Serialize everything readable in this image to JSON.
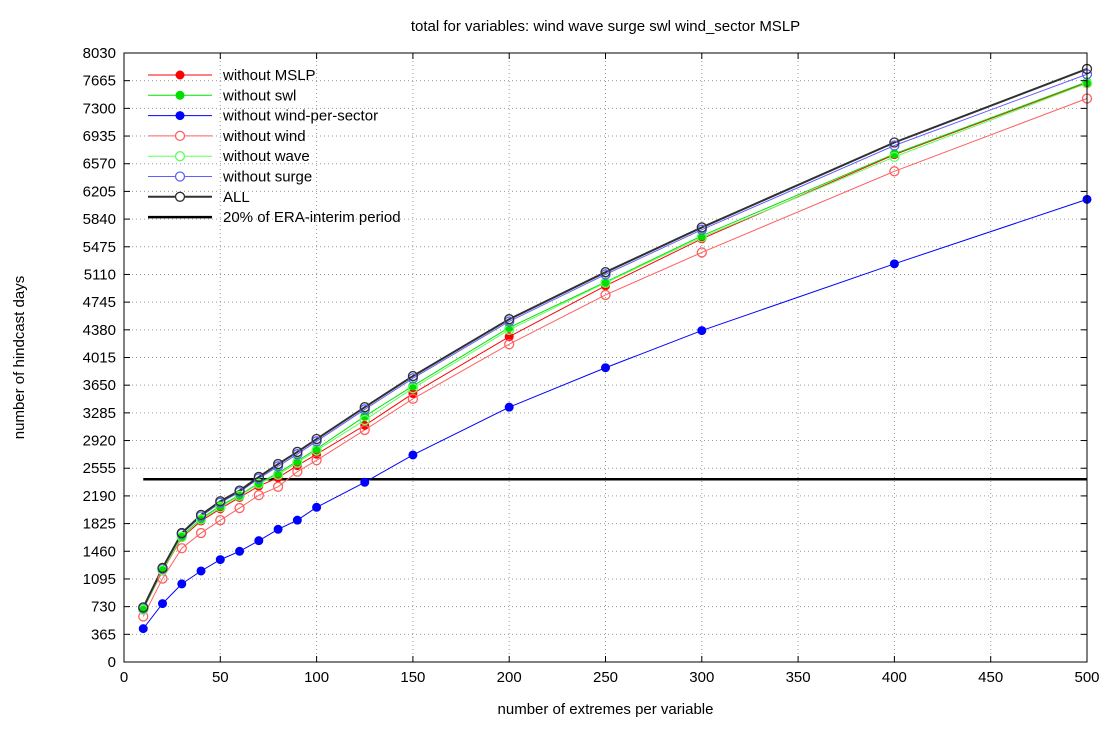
{
  "chart_data": {
    "type": "line",
    "title": "total for variables: wind wave surge swl wind_sector MSLP",
    "xlabel": "number of extremes per variable",
    "ylabel": "number of hindcast days",
    "xlim": [
      0,
      500
    ],
    "ylim": [
      0,
      8030
    ],
    "xticks": [
      0,
      50,
      100,
      150,
      200,
      250,
      300,
      350,
      400,
      450,
      500
    ],
    "yticks": [
      0,
      365,
      730,
      1095,
      1460,
      1825,
      2190,
      2555,
      2920,
      3285,
      3650,
      4015,
      4380,
      4745,
      5110,
      5475,
      5840,
      6205,
      6570,
      6935,
      7300,
      7665,
      8030
    ],
    "grid": true,
    "legend_position": "top-left",
    "x": [
      10,
      20,
      30,
      40,
      50,
      60,
      70,
      80,
      90,
      100,
      125,
      150,
      200,
      250,
      300,
      400,
      500
    ],
    "series": [
      {
        "name": "without MSLP",
        "color": "#ff0000",
        "marker": "filled",
        "line_width": 1,
        "values": [
          690,
          1200,
          1640,
          1860,
          2020,
          2170,
          2320,
          2430,
          2590,
          2740,
          3120,
          3540,
          4290,
          4960,
          5580,
          6690,
          7640
        ]
      },
      {
        "name": "without swl",
        "color": "#00e000",
        "marker": "filled",
        "line_width": 1,
        "values": [
          700,
          1210,
          1660,
          1890,
          2060,
          2200,
          2360,
          2490,
          2650,
          2810,
          3240,
          3640,
          4410,
          5010,
          5620,
          6700,
          7650
        ]
      },
      {
        "name": "without wind-per-sector",
        "color": "#0000ff",
        "marker": "filled",
        "line_width": 1,
        "values": [
          440,
          770,
          1030,
          1200,
          1350,
          1460,
          1600,
          1750,
          1870,
          2040,
          2370,
          2730,
          3360,
          3880,
          4370,
          5250,
          6100
        ]
      },
      {
        "name": "without wind",
        "color": "#ff6060",
        "marker": "open",
        "line_width": 1,
        "values": [
          600,
          1100,
          1500,
          1700,
          1870,
          2030,
          2200,
          2310,
          2510,
          2660,
          3060,
          3470,
          4190,
          4840,
          5400,
          6470,
          7430
        ]
      },
      {
        "name": "without wave",
        "color": "#60ff60",
        "marker": "open",
        "line_width": 1,
        "values": [
          690,
          1210,
          1650,
          1880,
          2040,
          2190,
          2350,
          2470,
          2630,
          2790,
          3190,
          3610,
          4380,
          5000,
          5600,
          6660,
          7630
        ]
      },
      {
        "name": "without surge",
        "color": "#6060ff",
        "marker": "open",
        "line_width": 1,
        "values": [
          710,
          1230,
          1690,
          1920,
          2100,
          2240,
          2420,
          2580,
          2740,
          2910,
          3330,
          3740,
          4490,
          5110,
          5700,
          6810,
          7750
        ]
      },
      {
        "name": "ALL",
        "color": "#303030",
        "marker": "open",
        "line_width": 2,
        "values": [
          720,
          1240,
          1700,
          1940,
          2120,
          2260,
          2440,
          2610,
          2770,
          2940,
          3360,
          3770,
          4520,
          5140,
          5730,
          6850,
          7820
        ]
      }
    ],
    "reference_line": {
      "name": "20% of ERA-interim period",
      "color": "#000000",
      "y": 2410,
      "x_range": [
        10,
        500
      ]
    }
  }
}
